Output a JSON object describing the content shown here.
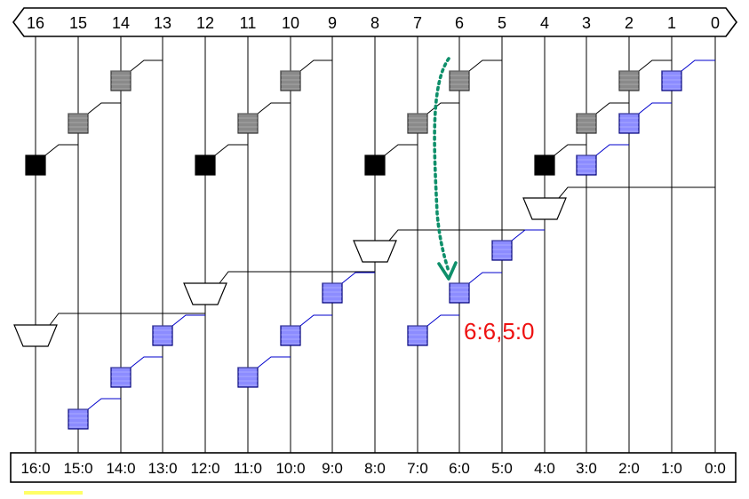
{
  "top_labels": [
    "16",
    "15",
    "14",
    "13",
    "12",
    "11",
    "10",
    "9",
    "8",
    "7",
    "6",
    "5",
    "4",
    "3",
    "2",
    "1",
    "0"
  ],
  "bottom_labels": [
    "16:0",
    "15:0",
    "14:0",
    "13:0",
    "12:0",
    "11:0",
    "10:0",
    "9:0",
    "8:0",
    "7:0",
    "6:0",
    "5:0",
    "4:0",
    "3:0",
    "2:0",
    "1:0",
    "0:0"
  ],
  "annotation": "6:6,5:0",
  "colors": {
    "wire": "#000000",
    "blue_wire": "#0000cc",
    "blue_cell_fill": "#8c8cff",
    "blue_cell_stroke": "#00007a",
    "gray_cell_fill": "#8a8a8a",
    "black_cell_fill": "#000000",
    "arrow": "#0e8f6a",
    "annotation": "#ee1111"
  }
}
